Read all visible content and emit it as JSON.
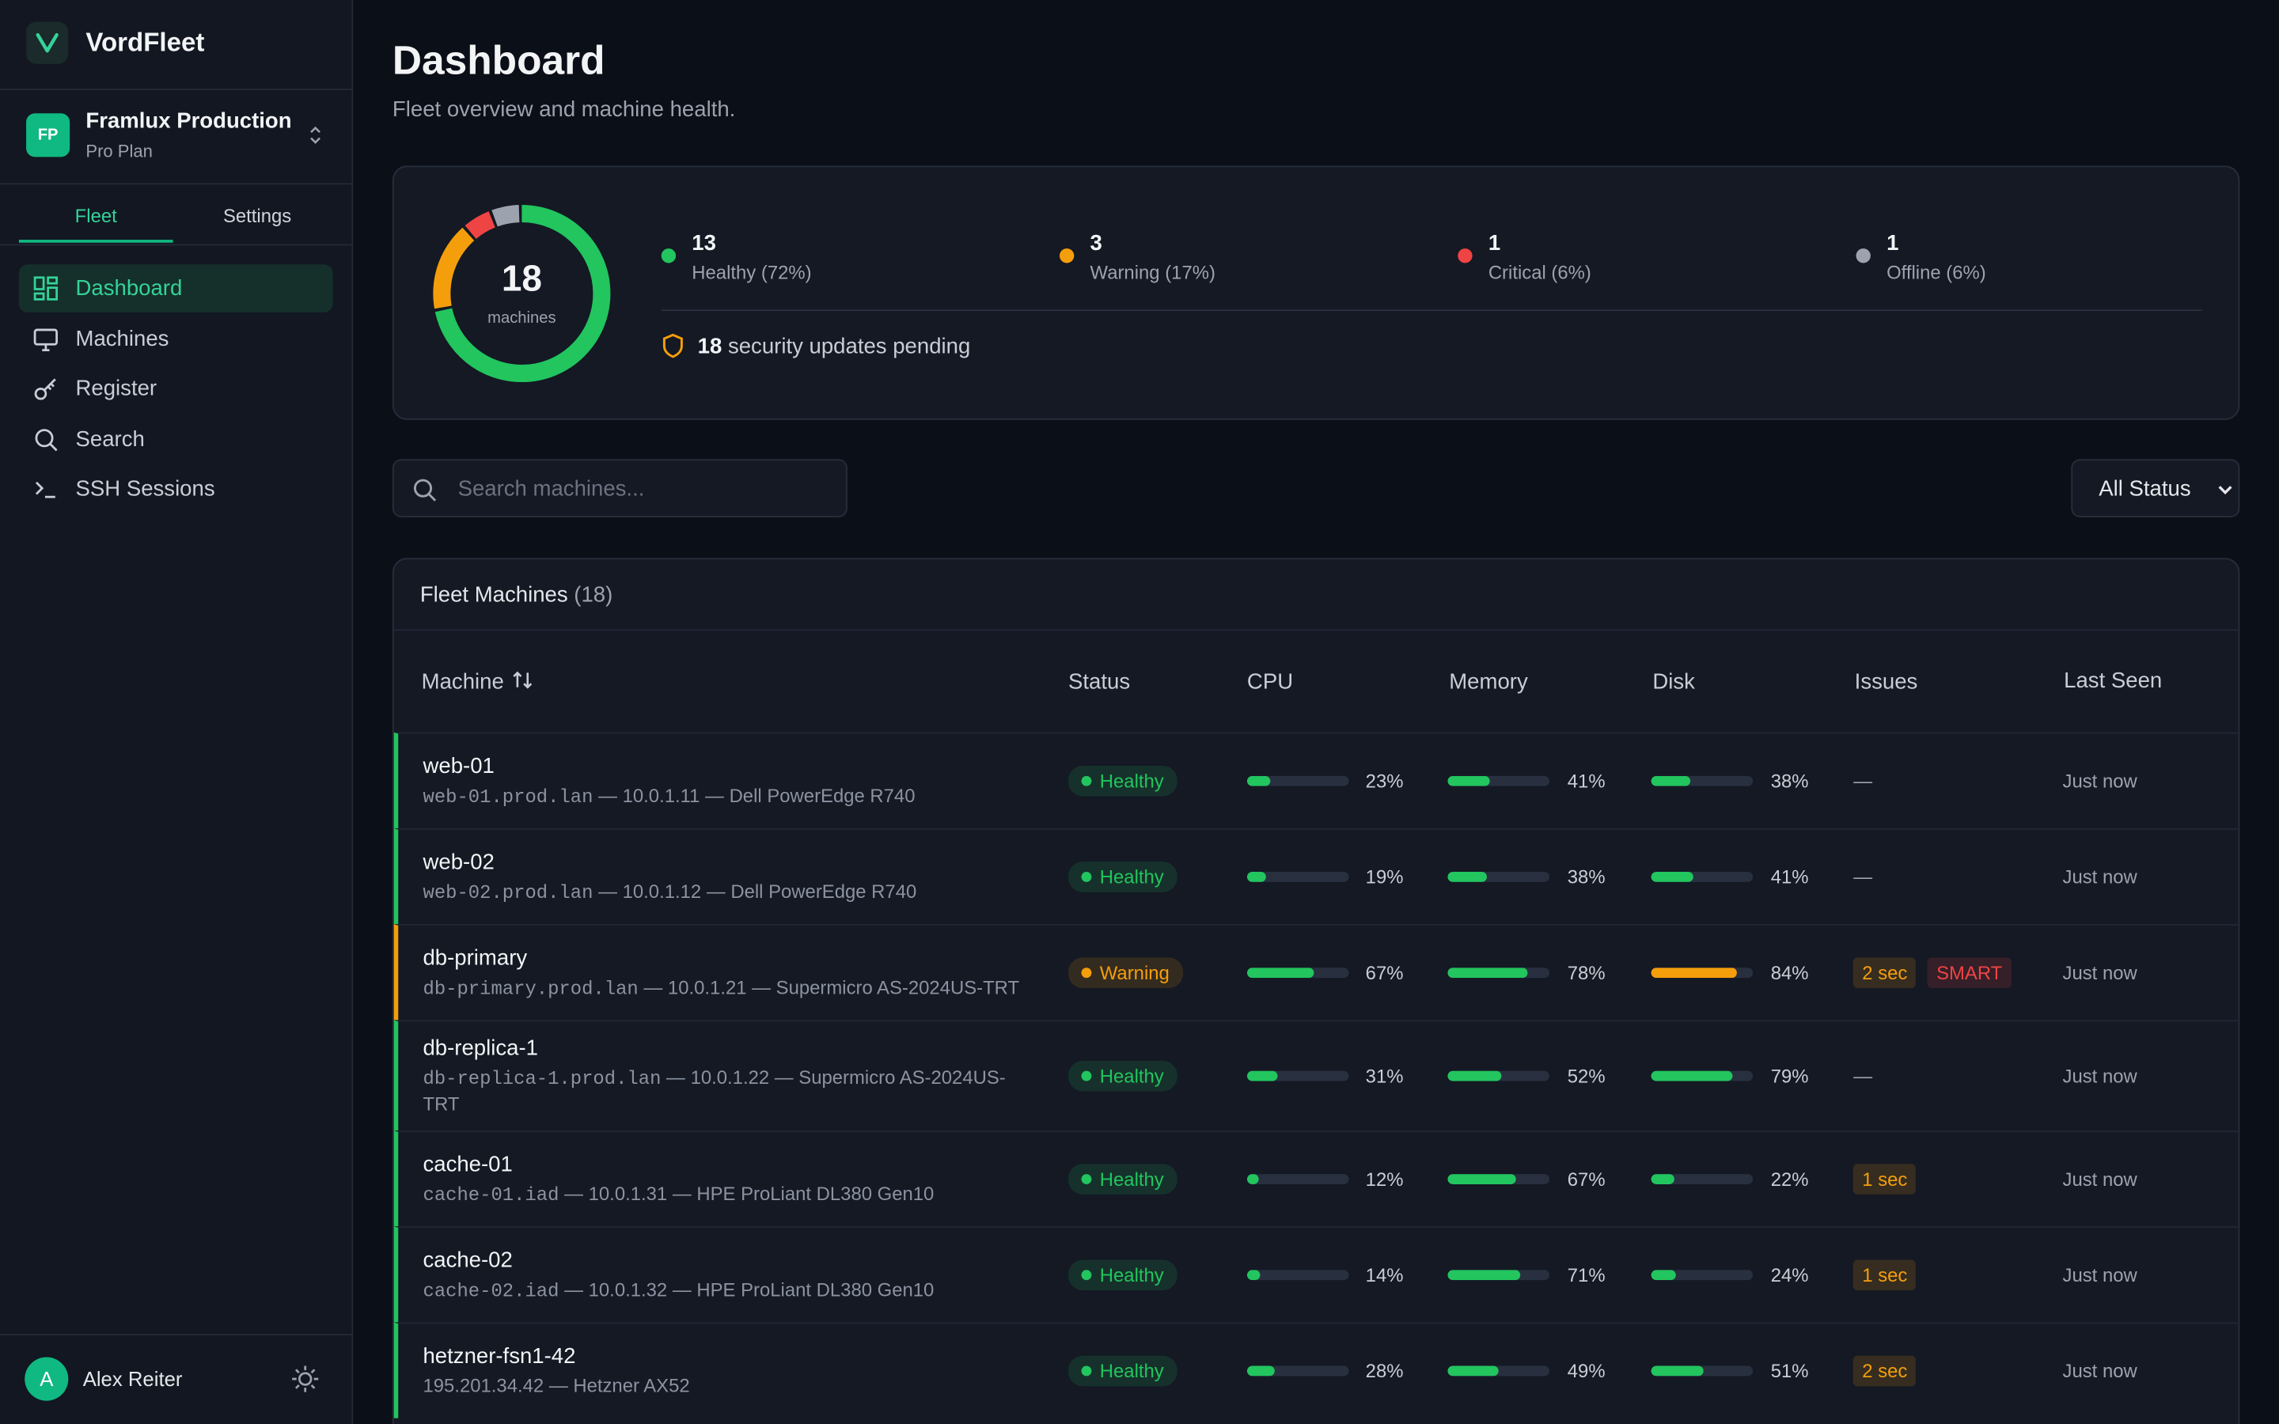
{
  "sidebar": {
    "brand": "VordFleet",
    "org": {
      "initials": "FP",
      "name": "Framlux Production",
      "plan": "Pro Plan"
    },
    "tabs": [
      "Fleet",
      "Settings"
    ],
    "nav": [
      "Dashboard",
      "Machines",
      "Register",
      "Search",
      "SSH Sessions"
    ],
    "user": {
      "initial": "A",
      "name": "Alex Reiter"
    }
  },
  "header": {
    "title": "Dashboard",
    "subtitle": "Fleet overview and machine health."
  },
  "summary": {
    "total": 18,
    "total_label": "machines",
    "stats": [
      {
        "count": 13,
        "label": "Healthy (72%)",
        "color": "#22c55e"
      },
      {
        "count": 3,
        "label": "Warning (17%)",
        "color": "#f59e0b"
      },
      {
        "count": 1,
        "label": "Critical (6%)",
        "color": "#ef4444"
      },
      {
        "count": 1,
        "label": "Offline (6%)",
        "color": "#9ca3af"
      }
    ],
    "security": {
      "count": 18,
      "text": "security updates pending"
    }
  },
  "search_placeholder": "Search machines...",
  "filter": "All Status",
  "table": {
    "title": "Fleet Machines",
    "count_label": "(18)",
    "columns": [
      "Machine",
      "Status",
      "CPU",
      "Memory",
      "Disk",
      "Issues",
      "Last Seen"
    ],
    "status_colors": {
      "Healthy": "#22c55e",
      "Warning": "#f59e0b"
    },
    "rows": [
      {
        "name": "web-01",
        "host": "web-01.prod.lan",
        "detail": "— 10.0.1.11 — Dell PowerEdge R740",
        "status": "Healthy",
        "cpu": 23,
        "cpu_label": "23%",
        "memory": 41,
        "memory_label": "41%",
        "disk": 38,
        "disk_label": "38%",
        "issues": "—",
        "last_seen": "Just now"
      },
      {
        "name": "web-02",
        "host": "web-02.prod.lan",
        "detail": "— 10.0.1.12 — Dell PowerEdge R740",
        "status": "Healthy",
        "cpu": 19,
        "cpu_label": "19%",
        "memory": 38,
        "memory_label": "38%",
        "disk": 41,
        "disk_label": "41%",
        "issues": "—",
        "last_seen": "Just now"
      },
      {
        "name": "db-primary",
        "host": "db-primary.prod.lan",
        "detail": "— 10.0.1.21 — Supermicro AS-2024US-TRT",
        "status": "Warning",
        "cpu": 67,
        "cpu_label": "67%",
        "memory": 78,
        "memory_label": "78%",
        "disk": 84,
        "disk_label": "84%",
        "issues": [
          {
            "text": "2 sec",
            "color": "#f59e0b"
          },
          {
            "text": "SMART",
            "color": "#ef4444"
          }
        ],
        "last_seen": "Just now"
      },
      {
        "name": "db-replica-1",
        "host": "db-replica-1.prod.lan",
        "detail": "— 10.0.1.22 — Supermicro AS-2024US-TRT",
        "status": "Healthy",
        "cpu": 31,
        "cpu_label": "31%",
        "memory": 52,
        "memory_label": "52%",
        "disk": 79,
        "disk_label": "79%",
        "issues": "—",
        "last_seen": "Just now"
      },
      {
        "name": "cache-01",
        "host": "cache-01.iad",
        "detail": "— 10.0.1.31 — HPE ProLiant DL380 Gen10",
        "status": "Healthy",
        "cpu": 12,
        "cpu_label": "12%",
        "memory": 67,
        "memory_label": "67%",
        "disk": 22,
        "disk_label": "22%",
        "issues": [
          {
            "text": "1 sec",
            "color": "#f59e0b"
          }
        ],
        "last_seen": "Just now"
      },
      {
        "name": "cache-02",
        "host": "cache-02.iad",
        "detail": "— 10.0.1.32 — HPE ProLiant DL380 Gen10",
        "status": "Healthy",
        "cpu": 14,
        "cpu_label": "14%",
        "memory": 71,
        "memory_label": "71%",
        "disk": 24,
        "disk_label": "24%",
        "issues": [
          {
            "text": "1 sec",
            "color": "#f59e0b"
          }
        ],
        "last_seen": "Just now"
      },
      {
        "name": "hetzner-fsn1-42",
        "detail": "195.201.34.42 — Hetzner AX52",
        "status": "Healthy",
        "cpu": 28,
        "cpu_label": "28%",
        "memory": 49,
        "memory_label": "49%",
        "disk": 51,
        "disk_label": "51%",
        "issues": [
          {
            "text": "2 sec",
            "color": "#f59e0b"
          }
        ],
        "last_seen": "Just now"
      }
    ]
  }
}
